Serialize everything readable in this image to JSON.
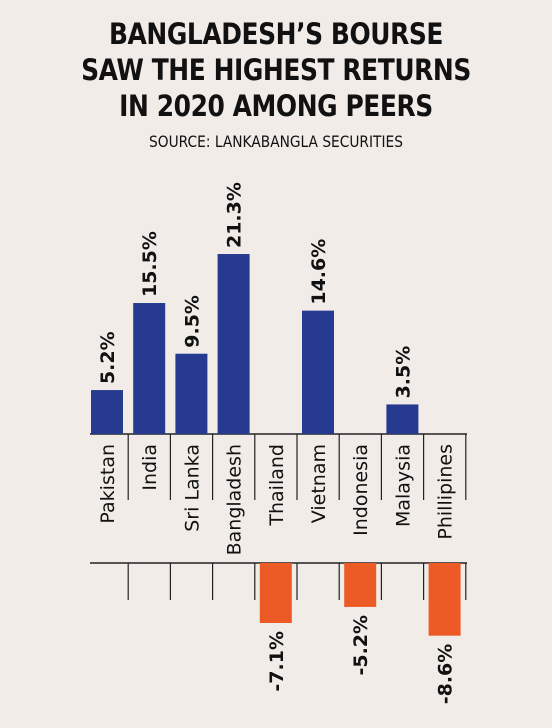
{
  "header": {
    "title_lines": [
      "BANGLADESH’S BOURSE",
      "SAW THE HIGHEST RETURNS",
      "IN 2020 AMONG PEERS"
    ],
    "source": "SOURCE: LANKABANGLA SECURITIES"
  },
  "colors": {
    "positive": "#263b8f",
    "negative": "#ec5b25",
    "background": "#f1ece8",
    "lines": "#222222"
  },
  "chart_data": {
    "type": "bar",
    "title": "BANGLADESH’S BOURSE SAW THE HIGHEST RETURNS IN 2020 AMONG PEERS",
    "categories": [
      "Pakistan",
      "India",
      "Sri Lanka",
      "Bangladesh",
      "Thailand",
      "Vietnam",
      "Indonesia",
      "Malaysia",
      "Phillipines"
    ],
    "values": [
      5.2,
      15.5,
      9.5,
      21.3,
      -7.1,
      14.6,
      -5.2,
      3.5,
      -8.6
    ],
    "value_labels": [
      "5.2%",
      "15.5%",
      "9.5%",
      "21.3%",
      "-7.1%",
      "14.6%",
      "-5.2%",
      "3.5%",
      "-8.6%"
    ],
    "unit": "%",
    "xlabel": "",
    "ylabel": "",
    "grid": false,
    "legend": "none"
  }
}
